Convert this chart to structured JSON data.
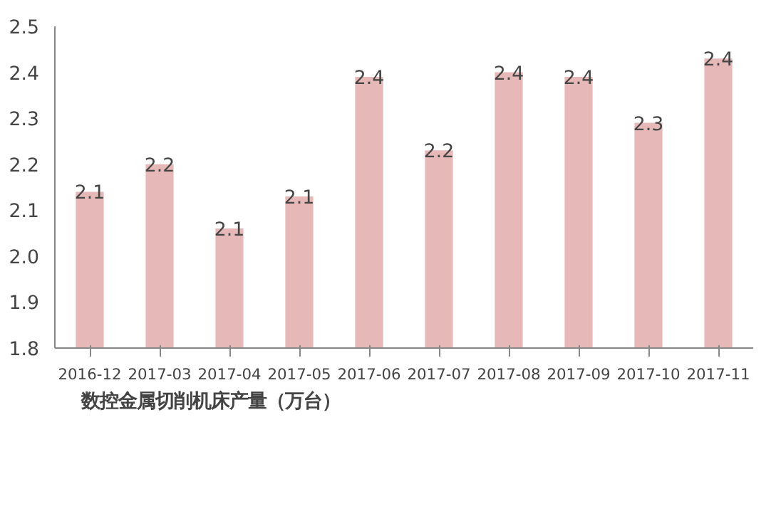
{
  "chart_data": {
    "type": "bar",
    "categories": [
      "2016-12",
      "2017-03",
      "2017-04",
      "2017-05",
      "2017-06",
      "2017-07",
      "2017-08",
      "2017-09",
      "2017-10",
      "2017-11"
    ],
    "series": [
      {
        "name": "数控金属切削机床产量（万台）",
        "color": "#e6b8b7",
        "values": [
          2.14,
          2.2,
          2.06,
          2.13,
          2.39,
          2.23,
          2.4,
          2.39,
          2.29,
          2.43
        ],
        "value_labels": [
          "2.1",
          "2.2",
          "2.1",
          "2.1",
          "2.4",
          "2.2",
          "2.4",
          "2.4",
          "2.3",
          "2.4"
        ]
      }
    ],
    "ylim": [
      1.8,
      2.5
    ],
    "yticks": [
      "1.8",
      1.9,
      "2.0",
      2.1,
      2.2,
      2.3,
      2.4,
      2.5
    ],
    "grid": false,
    "legend": "bottom left"
  }
}
